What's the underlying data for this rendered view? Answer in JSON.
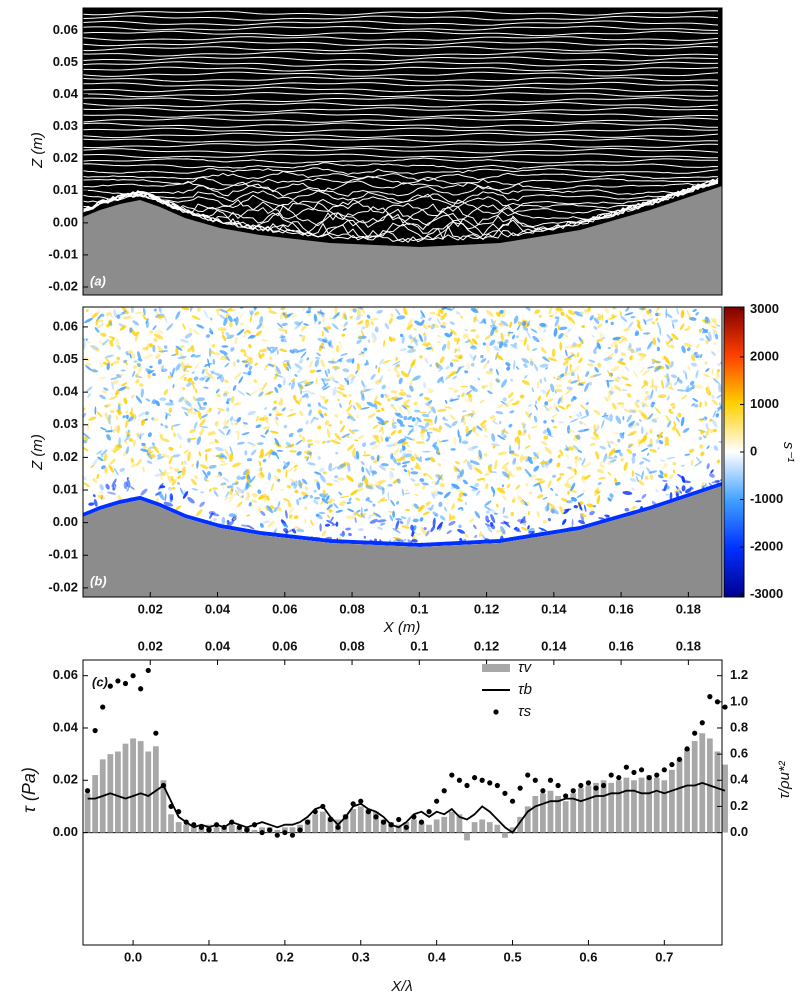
{
  "chart_data": [
    {
      "type": "streamlines",
      "annotation": "(a)",
      "y_label": "Z (m)",
      "ylim": [
        -0.0225,
        0.067
      ],
      "yticks": [
        0.06,
        0.05,
        0.04,
        0.03,
        0.02,
        0.01,
        {
          "value": 0,
          "label": "0.00"
        },
        -0.01,
        -0.02
      ]
    },
    {
      "type": "vorticity",
      "annotation": "(b)",
      "y_label": "Z (m)",
      "x_label": "X (m)",
      "xlim": [
        0,
        0.19
      ],
      "xticks": [
        0.02,
        0.04,
        0.06,
        0.08,
        0.1,
        0.12,
        0.14,
        0.16,
        0.18
      ],
      "ylim": [
        -0.0228,
        0.0661
      ],
      "yticks": [
        0.06,
        0.05,
        0.04,
        0.03,
        0.02,
        0.01,
        {
          "value": 0,
          "label": "0.00"
        },
        -0.01,
        -0.02
      ],
      "colorbar": {
        "label": "s⁻¹",
        "clim": [
          -3050,
          3050
        ],
        "ticks": [
          3000,
          2000,
          1000,
          0,
          -1000,
          -2000,
          -3000
        ],
        "colors": [
          "#7f0000",
          "#ff4000",
          "#ffd000",
          "#ffffff",
          "#40a0ff",
          "#0030ff",
          "#00008f"
        ]
      }
    },
    {
      "type": "bar",
      "annotation": "(c)",
      "y_label": "τ (Pa)",
      "y2_label": "τ/ρu*²",
      "x_label": "X/λ",
      "xlim": [
        -0.066,
        0.776
      ],
      "xticks": [
        {
          "value": 0,
          "label": "0.0"
        },
        0.1,
        0.2,
        0.3,
        0.4,
        0.5,
        0.6,
        0.7
      ],
      "x2lim": [
        0,
        0.19
      ],
      "x2ticks": [
        0.02,
        0.04,
        0.06,
        0.08,
        0.1,
        0.12,
        0.14,
        0.16,
        0.18
      ],
      "ylim": [
        -0.043,
        0.066
      ],
      "yticks": [
        {
          "value": 0,
          "label": "0.00"
        },
        0.02,
        0.04,
        0.06
      ],
      "y2lim": [
        -0.86,
        1.32
      ],
      "y2ticks": [
        {
          "value": 0,
          "label": "0.0"
        },
        0.2,
        0.4,
        0.6,
        0.8,
        {
          "value": 1,
          "label": "1.0"
        },
        1.2
      ],
      "legend": "upper center",
      "x": [
        -0.06,
        -0.05,
        -0.04,
        -0.03,
        -0.02,
        -0.01,
        0,
        0.01,
        0.02,
        0.03,
        0.04,
        0.05,
        0.06,
        0.07,
        0.08,
        0.09,
        0.1,
        0.11,
        0.12,
        0.13,
        0.14,
        0.15,
        0.16,
        0.17,
        0.18,
        0.19,
        0.2,
        0.21,
        0.22,
        0.23,
        0.24,
        0.25,
        0.26,
        0.27,
        0.28,
        0.29,
        0.3,
        0.31,
        0.32,
        0.33,
        0.34,
        0.35,
        0.36,
        0.37,
        0.38,
        0.39,
        0.4,
        0.41,
        0.42,
        0.43,
        0.44,
        0.45,
        0.46,
        0.47,
        0.48,
        0.49,
        0.5,
        0.51,
        0.52,
        0.53,
        0.54,
        0.55,
        0.56,
        0.57,
        0.58,
        0.59,
        0.6,
        0.61,
        0.62,
        0.63,
        0.64,
        0.65,
        0.66,
        0.67,
        0.68,
        0.69,
        0.7,
        0.71,
        0.72,
        0.73,
        0.74,
        0.75,
        0.76,
        0.77,
        0.78
      ],
      "series": [
        {
          "name": "τv",
          "type": "bar",
          "color": "#a8a8a8",
          "values": [
            0.015,
            0.022,
            0.028,
            0.03,
            0.031,
            0.034,
            0.036,
            0.035,
            0.031,
            0.033,
            0.02,
            0.007,
            0.004,
            0.003,
            0.002,
            0.002,
            0.003,
            0.002,
            0.002,
            0.003,
            0.002,
            0.002,
            0.001,
            0.002,
            0.002,
            0.001,
            0.002,
            0.002,
            0.003,
            0.005,
            0.007,
            0.008,
            0.006,
            0.005,
            0.007,
            0.009,
            0.01,
            0.009,
            0.008,
            0.005,
            0.004,
            0.003,
            0.004,
            0.005,
            0.004,
            0.003,
            0.005,
            0.006,
            0.008,
            0.007,
            -0.003,
            0.004,
            0.005,
            0.004,
            0.003,
            -0.002,
            0.002,
            0.006,
            0.01,
            0.014,
            0.015,
            0.016,
            0.014,
            0.012,
            0.015,
            0.017,
            0.018,
            0.019,
            0.02,
            0.019,
            0.02,
            0.021,
            0.02,
            0.021,
            0.022,
            0.021,
            0.02,
            0.024,
            0.028,
            0.032,
            0.035,
            0.038,
            0.036,
            0.031,
            0.026
          ]
        },
        {
          "name": "τb",
          "type": "line",
          "color": "#000000",
          "values": [
            0.013,
            0.013,
            0.014,
            0.015,
            0.014,
            0.013,
            0.014,
            0.015,
            0.014,
            0.016,
            0.018,
            0.012,
            0.006,
            0.004,
            0.002,
            0.003,
            0.002,
            0.003,
            0.002,
            0.004,
            0.003,
            0.002,
            0.003,
            0.004,
            0.003,
            0.002,
            0.003,
            0.003,
            0.004,
            0.006,
            0.009,
            0.01,
            0.006,
            0.003,
            0.006,
            0.01,
            0.011,
            0.009,
            0.008,
            0.006,
            0.003,
            0.002,
            0.004,
            0.007,
            0.008,
            0.006,
            0.008,
            0.007,
            0.009,
            0.006,
            0.005,
            0.007,
            0.01,
            0.008,
            0.005,
            0.002,
            0.0,
            0.004,
            0.008,
            0.01,
            0.011,
            0.012,
            0.012,
            0.013,
            0.013,
            0.012,
            0.013,
            0.014,
            0.014,
            0.015,
            0.015,
            0.016,
            0.016,
            0.015,
            0.015,
            0.016,
            0.015,
            0.016,
            0.017,
            0.018,
            0.018,
            0.019,
            0.018,
            0.017,
            0.016
          ]
        },
        {
          "name": "τs",
          "type": "scatter",
          "color": "#000000",
          "values": [
            0.016,
            0.039,
            0.048,
            0.056,
            0.058,
            0.057,
            0.06,
            0.055,
            0.062,
            0.038,
            0.018,
            0.01,
            0.008,
            0.004,
            0.003,
            0.002,
            0.001,
            0.003,
            0.002,
            0.004,
            0.002,
            0.001,
            0.003,
            0.0,
            0.001,
            -0.001,
            0.0,
            -0.001,
            0.001,
            0.004,
            0.008,
            0.01,
            0.005,
            0.002,
            0.006,
            0.011,
            0.012,
            0.008,
            0.006,
            0.004,
            0.003,
            0.005,
            0.002,
            0.006,
            0.004,
            0.008,
            0.012,
            0.016,
            0.022,
            0.02,
            0.018,
            0.021,
            0.02,
            0.019,
            0.018,
            0.015,
            0.012,
            0.017,
            0.022,
            0.02,
            0.016,
            0.02,
            0.018,
            0.014,
            0.016,
            0.018,
            0.019,
            0.017,
            0.018,
            0.022,
            0.021,
            0.025,
            0.023,
            0.024,
            0.021,
            0.022,
            0.024,
            0.026,
            0.028,
            0.032,
            0.038,
            0.042,
            0.052,
            0.05,
            0.048
          ]
        }
      ]
    }
  ]
}
